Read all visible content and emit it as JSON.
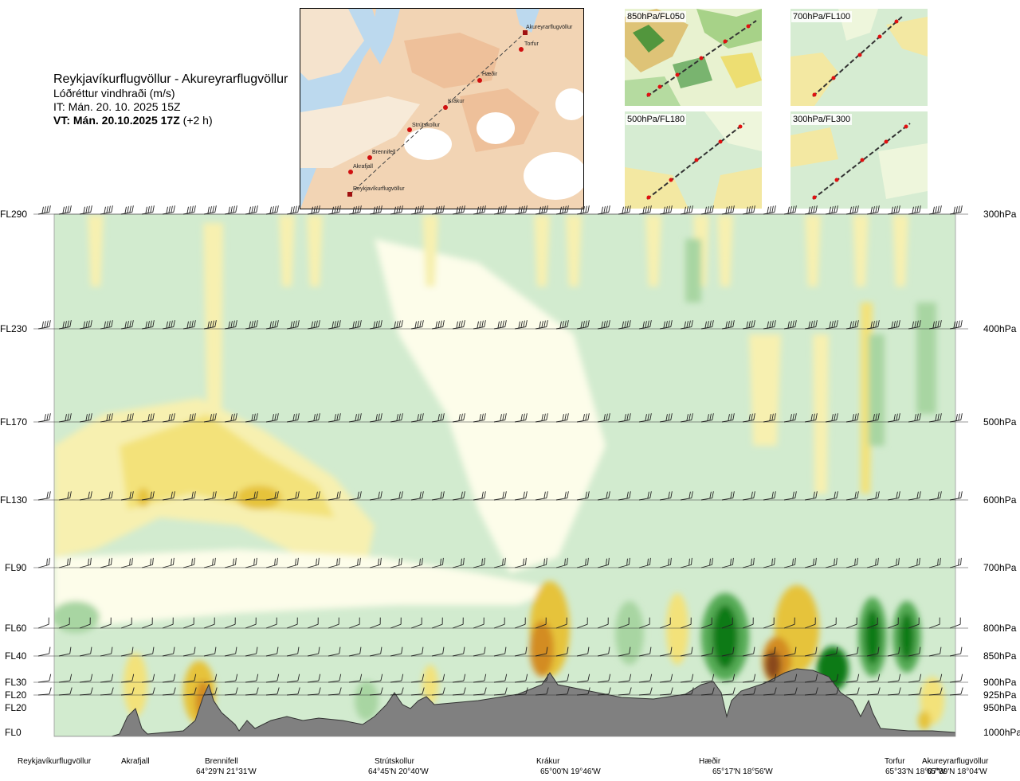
{
  "header": {
    "route": "Reykjavíkurflugvöllur - Akureyrarflugvöllur",
    "parameter": "Lóðréttur vindhraði (m/s)",
    "issue_time": "IT: Mán. 20. 10. 2025 15Z",
    "valid_time": "VT: Mán. 20.10.2025 17Z",
    "lead": "(+2 h)"
  },
  "route_map": {
    "stations": [
      "Akureyrarflugvöllur",
      "Torfur",
      "Hæðir",
      "Krákur",
      "Strútskollur",
      "Brennifell",
      "Akrafjall",
      "Reykjavíkurflugvöllur"
    ]
  },
  "mini_maps": [
    {
      "label": "850hPa/FL050"
    },
    {
      "label": "700hPa/FL100"
    },
    {
      "label": "500hPa/FL180"
    },
    {
      "label": "300hPa/FL300"
    }
  ],
  "colors": {
    "strong_down": "#0f7a12",
    "mod_down": "#55aa55",
    "weak_down": "#a8d5a2",
    "faint_down": "#d2ebcf",
    "neutral": "#fdfdea",
    "faint_up": "#f7f0b0",
    "weak_up": "#f3e27a",
    "mod_up": "#e6c33a",
    "strong_up": "#d38c20",
    "extreme_up": "#8a4a1b",
    "terrain": "#808080"
  },
  "chart_data": {
    "type": "heatmap",
    "title": "Lóðréttur vindhraði (m/s)",
    "x_stations": [
      {
        "name": "Reykjavíkurflugvöllur",
        "coord": ""
      },
      {
        "name": "Akrafjall",
        "coord": ""
      },
      {
        "name": "Brennifell",
        "coord": "64°29'N 21°31'W"
      },
      {
        "name": "Strútskollur",
        "coord": "64°45'N 20°40'W"
      },
      {
        "name": "Krákur",
        "coord": "65°00'N 19°46'W"
      },
      {
        "name": "Hæðir",
        "coord": "65°17'N 18°56'W"
      },
      {
        "name": "Torfur",
        "coord": "65°33'N 18°07'W"
      },
      {
        "name": "Akureyrarflugvöllur",
        "coord": "65°39'N 18°04'W"
      }
    ],
    "y_levels": [
      {
        "fl": "FL290",
        "hpa": "300hPa"
      },
      {
        "fl": "FL230",
        "hpa": "400hPa"
      },
      {
        "fl": "FL170",
        "hpa": "500hPa"
      },
      {
        "fl": "FL130",
        "hpa": "600hPa"
      },
      {
        "fl": "FL90",
        "hpa": "700hPa"
      },
      {
        "fl": "FL60",
        "hpa": "800hPa"
      },
      {
        "fl": "FL40",
        "hpa": "850hPa"
      },
      {
        "fl": "FL30",
        "hpa": "900hPa"
      },
      {
        "fl": "FL20",
        "hpa": "925hPa"
      },
      {
        "fl": "FL20",
        "hpa": "950hPa"
      },
      {
        "fl": "FL0",
        "hpa": "1000hPa"
      }
    ]
  }
}
